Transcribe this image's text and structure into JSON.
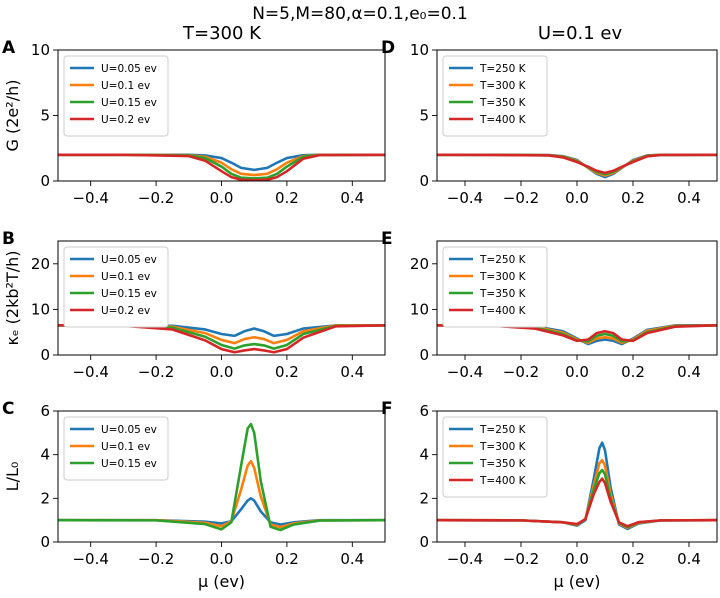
{
  "suptitle": "N=5,M=80,α=0.1,e₀=0.1",
  "column_titles": [
    "T=300 K",
    "U=0.1 ev"
  ],
  "colors": [
    "#1f77b4",
    "#ff7f0e",
    "#2ca02c",
    "#d62728"
  ],
  "chart_data": [
    {
      "id": "A",
      "type": "line",
      "letter": "A",
      "ylabel": "G (2e²/h)",
      "xlabel": "",
      "xlim": [
        -0.5,
        0.5
      ],
      "ylim": [
        0,
        10
      ],
      "xticks": [
        -0.4,
        -0.2,
        0.0,
        0.2,
        0.4
      ],
      "xtick_labels": [
        "−0.4",
        "−0.2",
        "0.0",
        "0.2",
        "0.4"
      ],
      "yticks": [
        0,
        5,
        10
      ],
      "ytick_labels": [
        "0",
        "5",
        "10"
      ],
      "x": [
        -0.5,
        -0.3,
        -0.1,
        -0.05,
        0.0,
        0.03,
        0.06,
        0.1,
        0.14,
        0.17,
        0.2,
        0.25,
        0.3,
        0.5
      ],
      "series": [
        {
          "name": "U=0.05 ev",
          "values": [
            2.0,
            2.0,
            2.0,
            1.95,
            1.75,
            1.4,
            1.0,
            0.85,
            1.0,
            1.4,
            1.75,
            1.97,
            2.0,
            2.0
          ]
        },
        {
          "name": "U=0.1 ev",
          "values": [
            2.0,
            2.0,
            1.97,
            1.85,
            1.4,
            0.9,
            0.55,
            0.45,
            0.55,
            0.9,
            1.4,
            1.9,
            2.0,
            2.0
          ]
        },
        {
          "name": "U=0.15 ev",
          "values": [
            2.0,
            2.0,
            1.95,
            1.75,
            1.1,
            0.55,
            0.25,
            0.2,
            0.25,
            0.55,
            1.1,
            1.85,
            1.99,
            2.0
          ]
        },
        {
          "name": "U=0.2 ev",
          "values": [
            2.0,
            2.0,
            1.9,
            1.55,
            0.75,
            0.3,
            0.1,
            0.05,
            0.1,
            0.3,
            0.75,
            1.7,
            1.98,
            2.0
          ]
        }
      ]
    },
    {
      "id": "D",
      "type": "line",
      "letter": "D",
      "ylabel": "",
      "xlabel": "",
      "xlim": [
        -0.5,
        0.5
      ],
      "ylim": [
        0,
        10
      ],
      "xticks": [
        -0.4,
        -0.2,
        0.0,
        0.2,
        0.4
      ],
      "xtick_labels": [
        "−0.4",
        "−0.2",
        "0.0",
        "0.2",
        "0.4"
      ],
      "yticks": [
        0,
        5,
        10
      ],
      "ytick_labels": [
        "0",
        "5",
        "10"
      ],
      "x": [
        -0.5,
        -0.3,
        -0.1,
        -0.05,
        0.0,
        0.04,
        0.07,
        0.1,
        0.13,
        0.16,
        0.2,
        0.25,
        0.3,
        0.5
      ],
      "series": [
        {
          "name": "T=250 K",
          "values": [
            2.0,
            2.0,
            1.98,
            1.9,
            1.6,
            1.0,
            0.55,
            0.3,
            0.55,
            1.0,
            1.6,
            1.95,
            2.0,
            2.0
          ]
        },
        {
          "name": "T=300 K",
          "values": [
            2.0,
            2.0,
            1.97,
            1.87,
            1.55,
            1.02,
            0.62,
            0.42,
            0.62,
            1.02,
            1.55,
            1.93,
            2.0,
            2.0
          ]
        },
        {
          "name": "T=350 K",
          "values": [
            2.0,
            2.0,
            1.96,
            1.84,
            1.5,
            1.05,
            0.7,
            0.52,
            0.7,
            1.05,
            1.5,
            1.91,
            1.99,
            2.0
          ]
        },
        {
          "name": "T=400 K",
          "values": [
            2.0,
            1.99,
            1.95,
            1.8,
            1.45,
            1.08,
            0.78,
            0.62,
            0.78,
            1.08,
            1.45,
            1.88,
            1.99,
            2.0
          ]
        }
      ]
    },
    {
      "id": "B",
      "type": "line",
      "letter": "B",
      "ylabel": "κₑ (2kb²T/h)",
      "xlabel": "",
      "xlim": [
        -0.5,
        0.5
      ],
      "ylim": [
        0,
        25
      ],
      "xticks": [
        -0.4,
        -0.2,
        0.0,
        0.2,
        0.4
      ],
      "xtick_labels": [
        "−0.4",
        "−0.2",
        "0.0",
        "0.2",
        "0.4"
      ],
      "yticks": [
        0,
        10,
        20
      ],
      "ytick_labels": [
        "0",
        "10",
        "20"
      ],
      "x": [
        -0.5,
        -0.3,
        -0.15,
        -0.05,
        0.0,
        0.04,
        0.07,
        0.1,
        0.13,
        0.16,
        0.2,
        0.25,
        0.35,
        0.5
      ],
      "series": [
        {
          "name": "U=0.05 ev",
          "values": [
            6.5,
            6.5,
            6.4,
            5.6,
            4.6,
            4.2,
            5.2,
            5.8,
            5.2,
            4.2,
            4.6,
            5.8,
            6.5,
            6.5
          ]
        },
        {
          "name": "U=0.1 ev",
          "values": [
            6.5,
            6.5,
            6.2,
            4.8,
            3.3,
            2.6,
            3.5,
            3.9,
            3.5,
            2.6,
            3.3,
            5.2,
            6.5,
            6.5
          ]
        },
        {
          "name": "U=0.15 ev",
          "values": [
            6.5,
            6.5,
            6.0,
            4.0,
            2.2,
            1.4,
            2.1,
            2.4,
            2.1,
            1.4,
            2.2,
            4.6,
            6.4,
            6.5
          ]
        },
        {
          "name": "U=0.2 ev",
          "values": [
            6.5,
            6.4,
            5.6,
            3.2,
            1.3,
            0.6,
            1.0,
            1.3,
            1.0,
            0.6,
            1.3,
            3.8,
            6.3,
            6.5
          ]
        }
      ]
    },
    {
      "id": "E",
      "type": "line",
      "letter": "E",
      "ylabel": "",
      "xlabel": "",
      "xlim": [
        -0.5,
        0.5
      ],
      "ylim": [
        0,
        25
      ],
      "xticks": [
        -0.4,
        -0.2,
        0.0,
        0.2,
        0.4
      ],
      "xtick_labels": [
        "−0.4",
        "−0.2",
        "0.0",
        "0.2",
        "0.4"
      ],
      "yticks": [
        0,
        10,
        20
      ],
      "ytick_labels": [
        "0",
        "10",
        "20"
      ],
      "x": [
        -0.5,
        -0.3,
        -0.15,
        -0.05,
        0.0,
        0.04,
        0.07,
        0.1,
        0.13,
        0.16,
        0.2,
        0.25,
        0.35,
        0.5
      ],
      "series": [
        {
          "name": "T=250 K",
          "values": [
            6.5,
            6.5,
            6.3,
            5.2,
            3.6,
            2.4,
            3.1,
            3.4,
            3.1,
            2.4,
            3.6,
            5.5,
            6.5,
            6.5
          ]
        },
        {
          "name": "T=300 K",
          "values": [
            6.5,
            6.5,
            6.2,
            4.9,
            3.4,
            2.7,
            3.6,
            3.9,
            3.6,
            2.7,
            3.4,
            5.3,
            6.4,
            6.5
          ]
        },
        {
          "name": "T=350 K",
          "values": [
            6.5,
            6.4,
            6.0,
            4.6,
            3.2,
            3.0,
            4.2,
            4.6,
            4.2,
            3.0,
            3.2,
            5.0,
            6.3,
            6.5
          ]
        },
        {
          "name": "T=400 K",
          "values": [
            6.5,
            6.4,
            5.8,
            4.3,
            3.1,
            3.4,
            4.8,
            5.2,
            4.8,
            3.4,
            3.1,
            4.8,
            6.2,
            6.5
          ]
        }
      ]
    },
    {
      "id": "C",
      "type": "line",
      "letter": "C",
      "ylabel": "L/L₀",
      "xlabel": "μ (ev)",
      "xlim": [
        -0.5,
        0.5
      ],
      "ylim": [
        0,
        6
      ],
      "xticks": [
        -0.4,
        -0.2,
        0.0,
        0.2,
        0.4
      ],
      "xtick_labels": [
        "−0.4",
        "−0.2",
        "0.0",
        "0.2",
        "0.4"
      ],
      "yticks": [
        0,
        2,
        4,
        6
      ],
      "ytick_labels": [
        "0",
        "2",
        "4",
        "6"
      ],
      "x": [
        -0.5,
        -0.2,
        -0.05,
        0.0,
        0.03,
        0.06,
        0.08,
        0.09,
        0.1,
        0.12,
        0.15,
        0.18,
        0.22,
        0.3,
        0.5
      ],
      "series": [
        {
          "name": "U=0.05 ev",
          "values": [
            1.0,
            1.0,
            0.93,
            0.85,
            0.95,
            1.5,
            1.9,
            2.0,
            1.9,
            1.4,
            0.9,
            0.8,
            0.9,
            1.0,
            1.0
          ]
        },
        {
          "name": "U=0.1 ev",
          "values": [
            1.0,
            1.0,
            0.88,
            0.72,
            0.95,
            2.4,
            3.5,
            3.7,
            3.4,
            2.1,
            0.8,
            0.68,
            0.85,
            0.99,
            1.0
          ]
        },
        {
          "name": "U=0.15 ev",
          "values": [
            1.0,
            0.99,
            0.82,
            0.58,
            0.9,
            3.5,
            5.2,
            5.4,
            5.0,
            2.8,
            0.7,
            0.55,
            0.8,
            0.98,
            1.0
          ]
        }
      ]
    },
    {
      "id": "F",
      "type": "line",
      "letter": "F",
      "ylabel": "",
      "xlabel": "μ (ev)",
      "xlim": [
        -0.5,
        0.5
      ],
      "ylim": [
        0,
        6
      ],
      "xticks": [
        -0.4,
        -0.2,
        0.0,
        0.2,
        0.4
      ],
      "xtick_labels": [
        "−0.4",
        "−0.2",
        "0.0",
        "0.2",
        "0.4"
      ],
      "yticks": [
        0,
        2,
        4,
        6
      ],
      "ytick_labels": [
        "0",
        "2",
        "4",
        "6"
      ],
      "x": [
        -0.5,
        -0.2,
        -0.05,
        0.0,
        0.03,
        0.06,
        0.08,
        0.09,
        0.1,
        0.12,
        0.15,
        0.18,
        0.22,
        0.3,
        0.5
      ],
      "series": [
        {
          "name": "T=250 K",
          "values": [
            1.0,
            0.99,
            0.9,
            0.75,
            1.0,
            2.9,
            4.3,
            4.55,
            4.2,
            2.5,
            0.8,
            0.6,
            0.85,
            0.99,
            1.0
          ]
        },
        {
          "name": "T=300 K",
          "values": [
            1.0,
            0.99,
            0.9,
            0.78,
            1.05,
            2.6,
            3.6,
            3.75,
            3.5,
            2.2,
            0.85,
            0.65,
            0.88,
            0.99,
            1.0
          ]
        },
        {
          "name": "T=350 K",
          "values": [
            1.0,
            0.99,
            0.9,
            0.8,
            1.05,
            2.4,
            3.15,
            3.3,
            3.1,
            2.0,
            0.88,
            0.68,
            0.9,
            0.99,
            1.0
          ]
        },
        {
          "name": "T=400 K",
          "values": [
            1.0,
            0.99,
            0.9,
            0.82,
            1.05,
            2.2,
            2.75,
            2.9,
            2.7,
            1.85,
            0.9,
            0.72,
            0.91,
            0.99,
            1.0
          ]
        }
      ]
    }
  ]
}
